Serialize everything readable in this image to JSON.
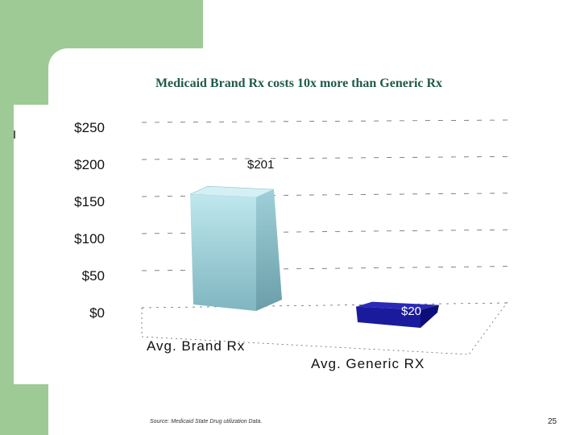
{
  "slide": {
    "source_note": "Source: Medicaid State Drug utilization Data.",
    "page_number": "25"
  },
  "colors": {
    "green_accent": "#9dca95",
    "title_color": "#1f5a4a",
    "brand_bar": "#a8d8e0",
    "generic_bar": "#1a1a9c"
  },
  "chart_data": {
    "type": "bar",
    "title": "Medicaid Brand Rx costs 10x more than Generic Rx",
    "categories": [
      "Avg. Brand Rx",
      "Avg. Generic RX"
    ],
    "values": [
      201,
      20
    ],
    "data_labels": [
      "$201",
      "$20"
    ],
    "ylim": [
      0,
      250
    ],
    "y_ticks": [
      "$0",
      "$50",
      "$100",
      "$150",
      "$200",
      "$250"
    ],
    "grid": true,
    "style": "3d"
  }
}
